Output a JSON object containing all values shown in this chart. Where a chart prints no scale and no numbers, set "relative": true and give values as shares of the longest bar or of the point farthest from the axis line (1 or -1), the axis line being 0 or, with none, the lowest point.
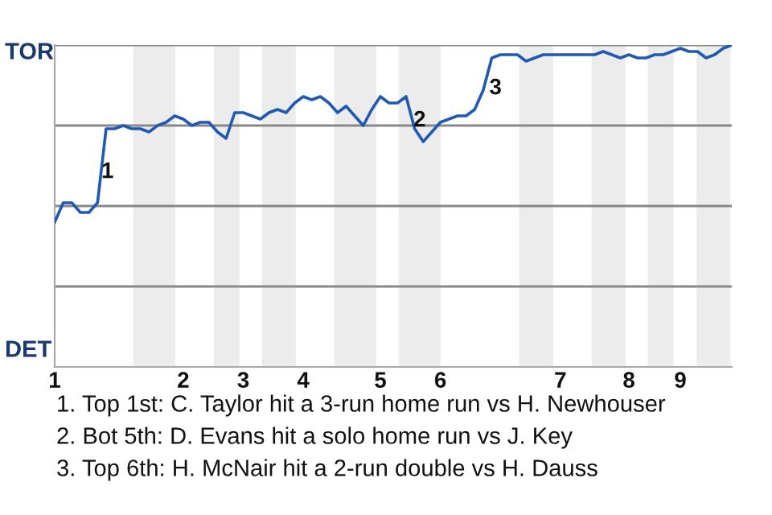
{
  "chart_data": {
    "type": "line",
    "relative": true,
    "categories": [
      "1",
      null,
      null,
      null,
      null,
      null,
      null,
      null,
      null,
      null,
      null,
      null,
      null,
      null,
      null,
      "2",
      null,
      null,
      null,
      null,
      null,
      null,
      "3",
      null,
      null,
      null,
      null,
      null,
      null,
      "4",
      null,
      null,
      null,
      null,
      null,
      null,
      null,
      null,
      "5",
      null,
      null,
      null,
      null,
      null,
      null,
      "6",
      null,
      null,
      null,
      null,
      null,
      null,
      null,
      null,
      null,
      null,
      null,
      null,
      null,
      "7",
      null,
      null,
      null,
      null,
      null,
      null,
      null,
      "8",
      null,
      null,
      null,
      null,
      null,
      "9",
      null,
      null,
      null,
      null,
      null,
      null
    ],
    "series": [
      {
        "color": "#1f5ab0",
        "values": [
          0.45,
          0.51,
          0.51,
          0.48,
          0.48,
          0.51,
          0.74,
          0.74,
          0.75,
          0.74,
          0.74,
          0.73,
          0.75,
          0.76,
          0.78,
          0.77,
          0.75,
          0.76,
          0.76,
          0.73,
          0.71,
          0.79,
          0.79,
          0.78,
          0.77,
          0.79,
          0.8,
          0.79,
          0.82,
          0.84,
          0.83,
          0.84,
          0.82,
          0.79,
          0.81,
          0.78,
          0.75,
          0.8,
          0.84,
          0.82,
          0.82,
          0.84,
          0.74,
          0.7,
          0.73,
          0.76,
          0.77,
          0.78,
          0.78,
          0.8,
          0.86,
          0.96,
          0.97,
          0.97,
          0.97,
          0.95,
          0.96,
          0.97,
          0.97,
          0.97,
          0.97,
          0.97,
          0.97,
          0.97,
          0.98,
          0.97,
          0.96,
          0.97,
          0.96,
          0.96,
          0.97,
          0.97,
          0.98,
          0.99,
          0.98,
          0.98,
          0.96,
          0.97,
          0.99,
          1.0
        ]
      }
    ],
    "grid": "y",
    "annotations": [
      "TOR",
      "DET",
      "1",
      "2",
      "3",
      "1. Top 1st: C. Taylor hit a 3-run home run vs H. Newhouser",
      "2. Bot 5th: D. Evans hit a solo home run vs J. Key",
      "3. Top 6th: H. McNair hit a 2-run double vs H. Dauss"
    ],
    "line_style": "solid",
    "marker": "none",
    "legend": false
  }
}
